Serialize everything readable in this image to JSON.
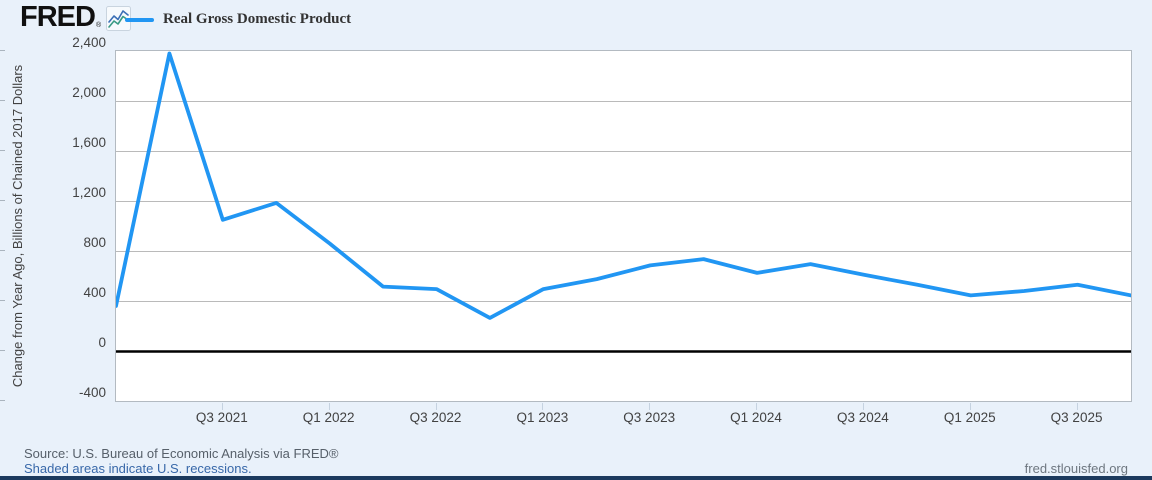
{
  "header": {
    "logo_text": "FRED",
    "registered_mark": "®",
    "logo_mark_icon": "fred-sparkline-icon",
    "legend": {
      "label": "Real Gross Domestic Product",
      "swatch_color": "#2196f3"
    }
  },
  "chart_data": {
    "type": "line",
    "title": "Real Gross Domestic Product",
    "ylabel": "Change from Year Ago, Billions of Chained 2017 Dollars",
    "xlabel": "",
    "frequency": "Quarterly",
    "x": [
      "Q1 2021",
      "Q2 2021",
      "Q3 2021",
      "Q4 2021",
      "Q1 2022",
      "Q2 2022",
      "Q3 2022",
      "Q4 2022",
      "Q1 2023",
      "Q2 2023",
      "Q3 2023",
      "Q4 2023",
      "Q1 2024",
      "Q2 2024",
      "Q3 2024",
      "Q4 2024",
      "Q1 2025",
      "Q2 2025",
      "Q3 2025",
      "Q4 2025"
    ],
    "values": [
      360,
      2380,
      1050,
      1185,
      860,
      515,
      495,
      265,
      495,
      575,
      685,
      735,
      625,
      695,
      610,
      530,
      445,
      480,
      530,
      445
    ],
    "ylim": [
      -400,
      2400
    ],
    "y_ticks": [
      {
        "value": -400,
        "label": "-400"
      },
      {
        "value": 0,
        "label": "0"
      },
      {
        "value": 400,
        "label": "400"
      },
      {
        "value": 800,
        "label": "800"
      },
      {
        "value": 1200,
        "label": "1,200"
      },
      {
        "value": 1600,
        "label": "1,600"
      },
      {
        "value": 2000,
        "label": "2,000"
      },
      {
        "value": 2400,
        "label": "2,400"
      }
    ],
    "x_ticks": [
      {
        "index": 2,
        "label": "Q3 2021"
      },
      {
        "index": 4,
        "label": "Q1 2022"
      },
      {
        "index": 6,
        "label": "Q3 2022"
      },
      {
        "index": 8,
        "label": "Q1 2023"
      },
      {
        "index": 10,
        "label": "Q3 2023"
      },
      {
        "index": 12,
        "label": "Q1 2024"
      },
      {
        "index": 14,
        "label": "Q3 2024"
      },
      {
        "index": 16,
        "label": "Q1 2025"
      },
      {
        "index": 18,
        "label": "Q3 2025"
      }
    ],
    "grid": "horizontal",
    "zero_line": true,
    "legend_position": "top-left",
    "line_color": "#2196f3",
    "gridline_color": "#bababa",
    "zero_line_color": "#000000",
    "plot_background": "#ffffff",
    "page_background": "#e9f1fa"
  },
  "footer": {
    "source_text": "Source: U.S. Bureau of Economic Analysis via FRED®",
    "recession_note": "Shaded areas indicate U.S. recessions.",
    "site_url": "fred.stlouisfed.org",
    "bar_color": "#1c3a5e"
  }
}
